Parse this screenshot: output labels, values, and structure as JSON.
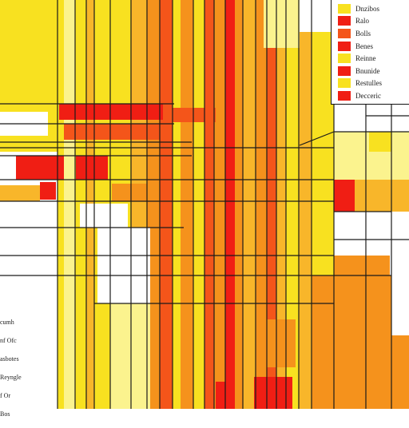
{
  "chart_data": {
    "type": "heatmap",
    "palette": {
      "red": "#f01e14",
      "orange_red": "#f4551a",
      "orange": "#f5921c",
      "amber": "#f8b62a",
      "yellow": "#f8e120",
      "light_yellow": "#fbf38e",
      "white": "#ffffff"
    },
    "legend": {
      "placement": "top-right",
      "entries": [
        {
          "label": "Dnzibos",
          "color": "#f8e120"
        },
        {
          "label": "Ralo",
          "color": "#f01e14"
        },
        {
          "label": "Bolls",
          "color": "#f4551a"
        },
        {
          "label": "Benes",
          "color": "#f01e14"
        },
        {
          "label": "Reinne",
          "color": "#f8e120"
        },
        {
          "label": "Bnunide",
          "color": "#f01e14"
        },
        {
          "label": "Restulles",
          "color": "#f8e120"
        },
        {
          "label": "Decceric",
          "color": "#f01e14"
        }
      ]
    },
    "row_labels": [
      "cumh",
      "nf Ofc",
      "asbotes",
      "Reyngle",
      "f Or",
      "Bos"
    ],
    "grid": true
  }
}
